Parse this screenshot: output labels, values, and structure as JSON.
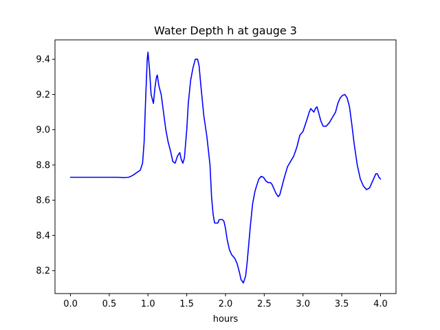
{
  "chart_data": {
    "type": "line",
    "title": "Water Depth h at gauge 3",
    "xlabel": "hours",
    "ylabel": "",
    "xlim": [
      -0.2,
      4.2
    ],
    "ylim": [
      8.07,
      9.51
    ],
    "xticks": [
      0.0,
      0.5,
      1.0,
      1.5,
      2.0,
      2.5,
      3.0,
      3.5,
      4.0
    ],
    "xtick_labels": [
      "0.0",
      "0.5",
      "1.0",
      "1.5",
      "2.0",
      "2.5",
      "3.0",
      "3.5",
      "4.0"
    ],
    "yticks": [
      8.2,
      8.4,
      8.6,
      8.8,
      9.0,
      9.2,
      9.4
    ],
    "ytick_labels": [
      "8.2",
      "8.4",
      "8.6",
      "8.8",
      "9.0",
      "9.2",
      "9.4"
    ],
    "grid": false,
    "series": [
      {
        "color": "#0000ff",
        "x": [
          0.0,
          0.1,
          0.2,
          0.3,
          0.4,
          0.5,
          0.6,
          0.7,
          0.75,
          0.8,
          0.85,
          0.9,
          0.93,
          0.95,
          0.97,
          0.99,
          1.0,
          1.02,
          1.04,
          1.07,
          1.09,
          1.11,
          1.12,
          1.14,
          1.17,
          1.2,
          1.23,
          1.26,
          1.29,
          1.32,
          1.35,
          1.38,
          1.41,
          1.43,
          1.45,
          1.47,
          1.5,
          1.52,
          1.55,
          1.58,
          1.61,
          1.64,
          1.66,
          1.68,
          1.72,
          1.76,
          1.8,
          1.82,
          1.84,
          1.86,
          1.88,
          1.9,
          1.92,
          1.94,
          1.96,
          1.98,
          2.0,
          2.02,
          2.05,
          2.08,
          2.1,
          2.12,
          2.15,
          2.18,
          2.2,
          2.23,
          2.26,
          2.28,
          2.3,
          2.32,
          2.35,
          2.38,
          2.4,
          2.43,
          2.46,
          2.49,
          2.52,
          2.55,
          2.58,
          2.6,
          2.63,
          2.65,
          2.68,
          2.7,
          2.73,
          2.76,
          2.8,
          2.84,
          2.88,
          2.92,
          2.96,
          3.0,
          3.03,
          3.06,
          3.08,
          3.1,
          3.12,
          3.14,
          3.16,
          3.18,
          3.2,
          3.23,
          3.26,
          3.3,
          3.34,
          3.38,
          3.42,
          3.45,
          3.48,
          3.51,
          3.54,
          3.57,
          3.6,
          3.63,
          3.66,
          3.7,
          3.74,
          3.78,
          3.82,
          3.86,
          3.89,
          3.92,
          3.94,
          3.96,
          3.98,
          4.0
        ],
        "y": [
          8.73,
          8.73,
          8.73,
          8.73,
          8.73,
          8.73,
          8.73,
          8.728,
          8.73,
          8.74,
          8.755,
          8.77,
          8.81,
          8.93,
          9.18,
          9.4,
          9.44,
          9.34,
          9.2,
          9.15,
          9.24,
          9.3,
          9.31,
          9.25,
          9.2,
          9.1,
          9.0,
          8.93,
          8.88,
          8.82,
          8.81,
          8.85,
          8.87,
          8.83,
          8.81,
          8.84,
          9.0,
          9.15,
          9.28,
          9.35,
          9.4,
          9.4,
          9.36,
          9.26,
          9.08,
          8.96,
          8.8,
          8.62,
          8.52,
          8.47,
          8.47,
          8.47,
          8.49,
          8.49,
          8.49,
          8.48,
          8.44,
          8.38,
          8.32,
          8.29,
          8.28,
          8.27,
          8.24,
          8.19,
          8.15,
          8.13,
          8.17,
          8.25,
          8.35,
          8.45,
          8.58,
          8.65,
          8.68,
          8.72,
          8.735,
          8.73,
          8.71,
          8.7,
          8.7,
          8.69,
          8.66,
          8.64,
          8.62,
          8.63,
          8.68,
          8.73,
          8.79,
          8.82,
          8.85,
          8.9,
          8.97,
          8.99,
          9.03,
          9.07,
          9.1,
          9.12,
          9.11,
          9.1,
          9.12,
          9.13,
          9.1,
          9.05,
          9.02,
          9.02,
          9.04,
          9.07,
          9.1,
          9.15,
          9.18,
          9.195,
          9.2,
          9.18,
          9.13,
          9.03,
          8.92,
          8.8,
          8.72,
          8.68,
          8.66,
          8.67,
          8.7,
          8.73,
          8.75,
          8.75,
          8.73,
          8.72
        ]
      }
    ]
  }
}
